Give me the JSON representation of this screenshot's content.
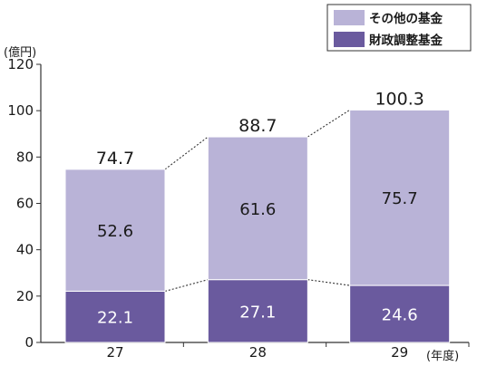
{
  "chart_data": {
    "type": "bar",
    "stacked": true,
    "categories": [
      "27",
      "28",
      "29"
    ],
    "series": [
      {
        "name": "財政調整基金",
        "values": [
          22.1,
          27.1,
          24.6
        ],
        "color": "#6a5a9e",
        "label_color": "#ffffff"
      },
      {
        "name": "その他の基金",
        "values": [
          52.6,
          61.6,
          75.7
        ],
        "color": "#b9b3d7",
        "label_color": "#1a1a1a"
      }
    ],
    "totals": [
      "74.7",
      "88.7",
      "100.3"
    ],
    "value_labels": [
      [
        "22.1",
        "27.1",
        "24.6"
      ],
      [
        "52.6",
        "61.6",
        "75.7"
      ]
    ],
    "y_ticks": [
      0,
      20,
      40,
      60,
      80,
      100,
      120
    ],
    "ylim": [
      0,
      120
    ],
    "y_unit": "(億円)",
    "x_unit": "(年度)",
    "legend_position": "top-right",
    "legend_order": [
      1,
      0
    ],
    "connector_lines": "dotted"
  }
}
